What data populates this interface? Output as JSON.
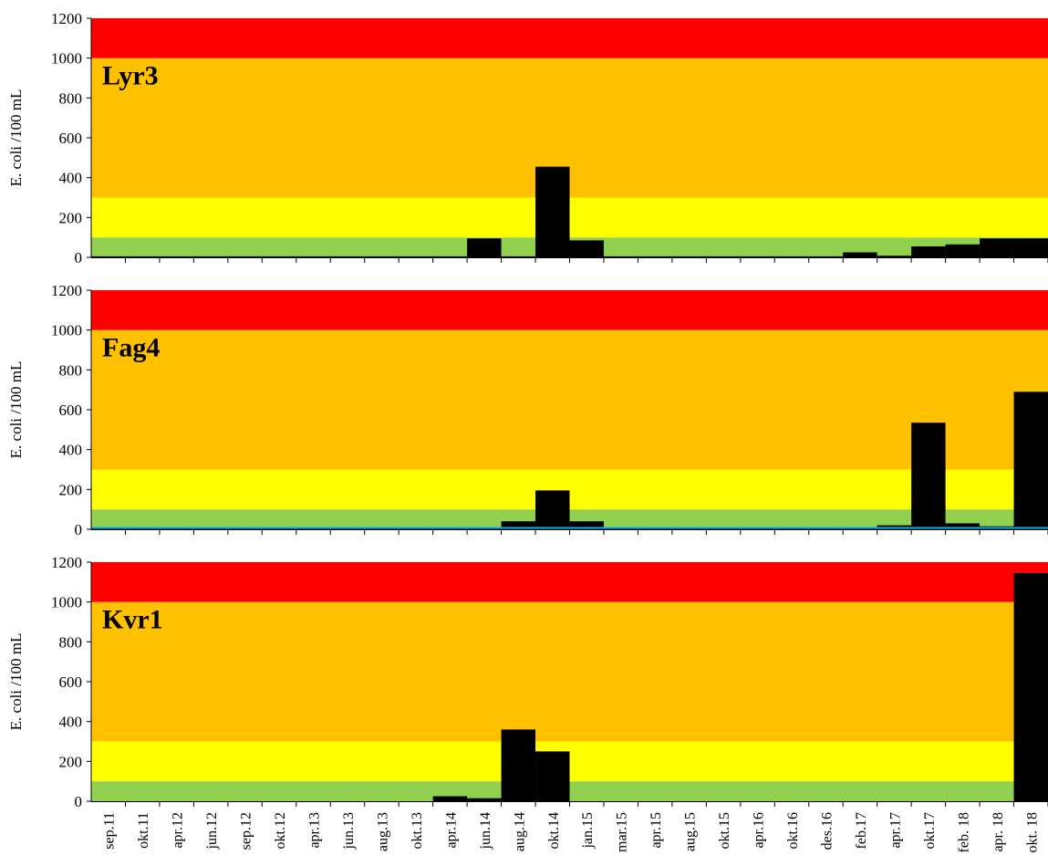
{
  "chart_data": [
    {
      "type": "bar",
      "title": "Lyr3",
      "ylabel": "E. coli /100 mL",
      "ylim": [
        0,
        1200
      ],
      "yticks": [
        "0",
        "200",
        "400",
        "600",
        "800",
        "1000",
        "1200"
      ],
      "bands": [
        {
          "from": 0,
          "to": 100,
          "color": "#92d050"
        },
        {
          "from": 100,
          "to": 300,
          "color": "#ffff00"
        },
        {
          "from": 300,
          "to": 1000,
          "color": "#ffc000"
        },
        {
          "from": 1000,
          "to": 1200,
          "color": "#ff0000"
        }
      ],
      "categories": [
        "sep.11",
        "okt.11",
        "apr.12",
        "jun.12",
        "sep.12",
        "okt.12",
        "apr.13",
        "jun.13",
        "aug.13",
        "okt.13",
        "apr.14",
        "jun.14",
        "aug.14",
        "okt.14",
        "jan.15",
        "mar.15",
        "apr.15",
        "aug.15",
        "okt.15",
        "apr.16",
        "okt.16",
        "des.16",
        "feb.17",
        "apr.17",
        "okt.17",
        "feb. 18",
        "apr. 18",
        "okt. 18"
      ],
      "values": [
        5,
        5,
        5,
        5,
        5,
        5,
        5,
        5,
        5,
        5,
        5,
        95,
        5,
        455,
        85,
        5,
        5,
        5,
        5,
        5,
        5,
        5,
        25,
        8,
        55,
        65,
        95,
        95
      ],
      "bar_color": "#000000"
    },
    {
      "type": "bar",
      "title": "Fag4",
      "ylabel": "E. coli /100 mL",
      "ylim": [
        0,
        1200
      ],
      "yticks": [
        "0",
        "200",
        "400",
        "600",
        "800",
        "1000",
        "1200"
      ],
      "bands": [
        {
          "from": 0,
          "to": 100,
          "color": "#92d050"
        },
        {
          "from": 100,
          "to": 300,
          "color": "#ffff00"
        },
        {
          "from": 300,
          "to": 1000,
          "color": "#ffc000"
        },
        {
          "from": 1000,
          "to": 1200,
          "color": "#ff0000"
        }
      ],
      "categories": [
        "sep.11",
        "okt.11",
        "apr.12",
        "jun.12",
        "sep.12",
        "okt.12",
        "apr.13",
        "jun.13",
        "aug.13",
        "okt.13",
        "apr.14",
        "jun.14",
        "aug.14",
        "okt.14",
        "jan.15",
        "mar.15",
        "apr.15",
        "aug.15",
        "okt.15",
        "apr.16",
        "okt.16",
        "des.16",
        "feb.17",
        "apr.17",
        "okt.17",
        "feb. 18",
        "apr. 18",
        "okt. 18"
      ],
      "values": [
        5,
        5,
        5,
        5,
        5,
        5,
        5,
        5,
        5,
        5,
        5,
        10,
        40,
        195,
        40,
        5,
        5,
        5,
        5,
        5,
        10,
        10,
        10,
        20,
        535,
        30,
        15,
        690
      ],
      "bar_color": "#000000",
      "baseline_color": "#00b0f0"
    },
    {
      "type": "bar",
      "title": "Kvr1",
      "ylabel": "E. coli /100 mL",
      "ylim": [
        0,
        1200
      ],
      "yticks": [
        "0",
        "200",
        "400",
        "600",
        "800",
        "1000",
        "1200"
      ],
      "bands": [
        {
          "from": 0,
          "to": 100,
          "color": "#92d050"
        },
        {
          "from": 100,
          "to": 300,
          "color": "#ffff00"
        },
        {
          "from": 300,
          "to": 1000,
          "color": "#ffc000"
        },
        {
          "from": 1000,
          "to": 1200,
          "color": "#ff0000"
        }
      ],
      "categories": [
        "sep.11",
        "okt.11",
        "apr.12",
        "jun.12",
        "sep.12",
        "okt.12",
        "apr.13",
        "jun.13",
        "aug.13",
        "okt.13",
        "apr.14",
        "jun.14",
        "aug.14",
        "okt.14",
        "jan.15",
        "mar.15",
        "apr.15",
        "aug.15",
        "okt.15",
        "apr.16",
        "okt.16",
        "des.16",
        "feb.17",
        "apr.17",
        "okt.17",
        "feb. 18",
        "apr. 18",
        "okt. 18"
      ],
      "values": [
        0,
        0,
        0,
        0,
        0,
        0,
        0,
        0,
        0,
        0,
        25,
        15,
        360,
        250,
        0,
        0,
        0,
        0,
        0,
        0,
        0,
        0,
        0,
        0,
        0,
        0,
        0,
        1145
      ],
      "bar_color": "#000000",
      "show_x_labels": true
    }
  ]
}
